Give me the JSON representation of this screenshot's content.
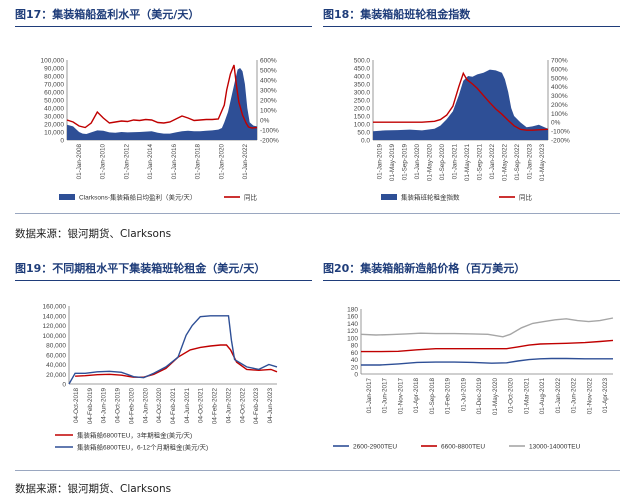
{
  "titles": {
    "fig17": "图17：集装箱船盈利水平（美元/天）",
    "fig18": "图18：集装箱船班轮租金指数",
    "fig19": "图19：不同期租水平下集装箱班轮租金（美元/天）",
    "fig20": "图20：集装箱船新造船价格（百万美元）"
  },
  "sources": {
    "top": "数据来源：银河期货、Clarksons",
    "bottom": "数据来源：银河期货、Clarksons"
  },
  "chart_data": [
    {
      "id": "fig17",
      "type": "area",
      "x_tick_labels": [
        "01-Jan-2008",
        "01-Jan-2010",
        "01-Jan-2012",
        "01-Jan-2014",
        "01-Jan-2016",
        "01-Jan-2018",
        "01-Jan-2020",
        "01-Jan-2022"
      ],
      "x_range": [
        2008.0,
        2023.7
      ],
      "y_left": {
        "ticks": [
          "0",
          "10,000",
          "20,000",
          "30,000",
          "40,000",
          "50,000",
          "60,000",
          "70,000",
          "80,000",
          "90,000",
          "100,000"
        ],
        "range": [
          0,
          100000
        ]
      },
      "y_right": {
        "ticks": [
          "600%",
          "500%",
          "400%",
          "300%",
          "200%",
          "100%",
          "0%",
          "-100%",
          "-200%"
        ],
        "range": [
          -200,
          600
        ]
      },
      "legend": [
        "Clarksons-集装箱船日均盈利（美元/天）",
        "同比"
      ],
      "colors": {
        "area": "#2e4f96",
        "line": "#c00000"
      },
      "series": [
        {
          "name": "Clarksons-集装箱船日均盈利（美元/天）",
          "axis": "left",
          "x": [
            2008.0,
            2008.5,
            2009.0,
            2009.3,
            2009.6,
            2010.0,
            2010.5,
            2011.0,
            2011.5,
            2012.0,
            2012.5,
            2013.0,
            2014.0,
            2015.0,
            2015.5,
            2016.0,
            2016.5,
            2017.0,
            2017.5,
            2018.0,
            2018.5,
            2019.0,
            2019.5,
            2020.0,
            2020.5,
            2020.8,
            2021.0,
            2021.3,
            2021.6,
            2021.9,
            2022.1,
            2022.3,
            2022.5,
            2022.7,
            2022.9,
            2023.1,
            2023.4,
            2023.7
          ],
          "values": [
            19000,
            17000,
            10000,
            8000,
            7500,
            9500,
            12000,
            11500,
            9500,
            9000,
            10000,
            9500,
            10000,
            11000,
            9000,
            8000,
            8000,
            9500,
            11000,
            11500,
            11000,
            11000,
            11500,
            12000,
            13000,
            15000,
            22000,
            35000,
            55000,
            75000,
            88000,
            90000,
            86000,
            70000,
            40000,
            22000,
            18000,
            17000
          ]
        },
        {
          "name": "同比",
          "axis": "right",
          "x": [
            2008.0,
            2008.5,
            2009.0,
            2009.5,
            2010.0,
            2010.5,
            2011.0,
            2011.5,
            2012.0,
            2012.5,
            2013.0,
            2013.5,
            2014.0,
            2014.5,
            2015.0,
            2015.5,
            2016.0,
            2016.5,
            2017.0,
            2017.5,
            2018.0,
            2018.5,
            2019.0,
            2019.5,
            2020.0,
            2020.5,
            2021.0,
            2021.2,
            2021.5,
            2021.8,
            2022.0,
            2022.2,
            2022.5,
            2022.8,
            2023.0,
            2023.3,
            2023.7
          ],
          "values": [
            0,
            -20,
            -60,
            -75,
            -30,
            80,
            20,
            -30,
            -20,
            -10,
            -15,
            0,
            -5,
            5,
            0,
            -25,
            -30,
            -20,
            10,
            40,
            20,
            -5,
            0,
            5,
            5,
            10,
            150,
            300,
            460,
            550,
            350,
            180,
            50,
            -30,
            -70,
            -80,
            -75
          ]
        }
      ]
    },
    {
      "id": "fig18",
      "type": "area",
      "x_tick_labels": [
        "01-Jan-2019",
        "01-May-2019",
        "01-Sep-2019",
        "01-Jan-2020",
        "01-May-2020",
        "01-Sep-2020",
        "01-Jan-2021",
        "01-May-2021",
        "01-Sep-2021",
        "01-Jan-2022",
        "01-May-2022",
        "01-Sep-2022",
        "01-Jan-2023",
        "01-May-2023"
      ],
      "x_range": [
        2019.0,
        2023.75
      ],
      "y_left": {
        "ticks": [
          "0.0",
          "50.0",
          "100.0",
          "150.0",
          "200.0",
          "250.0",
          "300.0",
          "350.0",
          "400.0",
          "450.0",
          "500.0"
        ],
        "range": [
          0,
          500
        ]
      },
      "y_right": {
        "ticks": [
          "700%",
          "600%",
          "500%",
          "400%",
          "300%",
          "200%",
          "100%",
          "0%",
          "-100%",
          "-200%"
        ],
        "range": [
          -200,
          700
        ]
      },
      "legend": [
        "集装箱班轮租金指数",
        "同比"
      ],
      "colors": {
        "area": "#2e4f96",
        "line": "#c00000"
      },
      "series": [
        {
          "name": "集装箱班轮租金指数",
          "axis": "left",
          "x": [
            2019.0,
            2019.33,
            2019.67,
            2020.0,
            2020.33,
            2020.67,
            2020.83,
            2021.0,
            2021.17,
            2021.33,
            2021.45,
            2021.58,
            2021.7,
            2021.83,
            2022.0,
            2022.17,
            2022.33,
            2022.5,
            2022.58,
            2022.67,
            2022.75,
            2022.83,
            2023.0,
            2023.17,
            2023.33,
            2023.5,
            2023.75
          ],
          "values": [
            55,
            60,
            62,
            65,
            60,
            70,
            90,
            130,
            180,
            280,
            370,
            400,
            395,
            410,
            420,
            440,
            435,
            420,
            380,
            300,
            200,
            150,
            110,
            80,
            85,
            95,
            70
          ]
        },
        {
          "name": "同比",
          "axis": "right",
          "x": [
            2019.0,
            2019.33,
            2019.67,
            2020.0,
            2020.33,
            2020.67,
            2020.83,
            2021.0,
            2021.17,
            2021.33,
            2021.45,
            2021.55,
            2021.7,
            2021.83,
            2022.0,
            2022.17,
            2022.33,
            2022.5,
            2022.67,
            2022.83,
            2023.0,
            2023.17,
            2023.33,
            2023.5,
            2023.75
          ],
          "values": [
            0,
            0,
            0,
            0,
            0,
            10,
            30,
            80,
            180,
            400,
            550,
            480,
            430,
            380,
            300,
            220,
            150,
            90,
            20,
            -40,
            -80,
            -90,
            -90,
            -85,
            -80
          ]
        }
      ]
    },
    {
      "id": "fig19",
      "type": "line",
      "x_tick_labels": [
        "04-Oct-2018",
        "04-Feb-2019",
        "04-Jun-2019",
        "04-Oct-2019",
        "04-Feb-2020",
        "04-Jun-2020",
        "04-Oct-2020",
        "04-Feb-2021",
        "04-Jun-2021",
        "04-Oct-2021",
        "04-Feb-2022",
        "04-Jun-2022",
        "04-Oct-2022",
        "04-Feb-2023",
        "04-Jun-2023"
      ],
      "x_range": [
        2018.6,
        2023.75
      ],
      "y_left": {
        "ticks": [
          "0",
          "20,000",
          "40,000",
          "60,000",
          "80,000",
          "100,000",
          "120,000",
          "140,000",
          "160,000"
        ],
        "range": [
          0,
          160000
        ]
      },
      "legend": [
        "集装箱船6800TEU，3年期租金(美元/天)",
        "集装箱船6800TEU，6-12个月期租金(美元/天)"
      ],
      "colors": {
        "s1": "#c00000",
        "s2": "#2e4f96"
      },
      "series": [
        {
          "name": "集装箱船6800TEU，3年期租金(美元/天)",
          "x": [
            2018.75,
            2019.0,
            2019.3,
            2019.6,
            2019.9,
            2020.2,
            2020.45,
            2020.7,
            2021.0,
            2021.3,
            2021.6,
            2021.85,
            2022.1,
            2022.35,
            2022.5,
            2022.6,
            2022.75,
            2023.0,
            2023.3,
            2023.6,
            2023.75
          ],
          "values": [
            16000,
            17000,
            19000,
            20000,
            18000,
            14000,
            14000,
            20000,
            32000,
            55000,
            70000,
            75000,
            78000,
            80000,
            80000,
            70000,
            45000,
            30000,
            28000,
            30000,
            25000
          ]
        },
        {
          "name": "集装箱船6800TEU，6-12个月期租金(美元/天)",
          "x": [
            2018.6,
            2018.75,
            2019.0,
            2019.3,
            2019.6,
            2019.9,
            2020.2,
            2020.45,
            2020.7,
            2021.0,
            2021.3,
            2021.5,
            2021.65,
            2021.85,
            2022.1,
            2022.35,
            2022.55,
            2022.62,
            2022.7,
            2023.0,
            2023.3,
            2023.55,
            2023.75
          ],
          "values": [
            0,
            22000,
            22000,
            25000,
            26000,
            24000,
            15000,
            13000,
            22000,
            35000,
            55000,
            100000,
            120000,
            138000,
            140000,
            140000,
            140000,
            90000,
            50000,
            35000,
            30000,
            40000,
            35000
          ]
        }
      ]
    },
    {
      "id": "fig20",
      "type": "line",
      "x_tick_labels": [
        "01-Jan-2017",
        "01-Jun-2017",
        "01-Nov-2017",
        "01-Apr-2018",
        "01-Sep-2018",
        "01-Feb-2019",
        "01-Jul-2019",
        "01-Dec-2019",
        "01-May-2020",
        "01-Oct-2020",
        "01-Mar-2021",
        "01-Aug-2021",
        "01-Jan-2022",
        "01-Jun-2022",
        "01-Nov-2022",
        "01-Apr-2023"
      ],
      "x_range": [
        2017.0,
        2023.75
      ],
      "y_left": {
        "ticks": [
          "0",
          "20",
          "40",
          "60",
          "80",
          "100",
          "120",
          "140",
          "160",
          "180"
        ],
        "range": [
          0,
          180
        ]
      },
      "legend": [
        "2600-2900TEU",
        "6600-8800TEU",
        "13000-14000TEU"
      ],
      "colors": {
        "s1": "#2e4f96",
        "s2": "#c00000",
        "s3": "#a6a6a6"
      },
      "series": [
        {
          "name": "2600-2900TEU",
          "x": [
            2017.0,
            2017.5,
            2018.0,
            2018.5,
            2019.0,
            2019.5,
            2020.0,
            2020.5,
            2020.9,
            2021.2,
            2021.5,
            2021.8,
            2022.1,
            2022.5,
            2023.0,
            2023.75
          ],
          "values": [
            25,
            25,
            28,
            32,
            33,
            33,
            32,
            30,
            31,
            36,
            40,
            42,
            43,
            43,
            42,
            42
          ]
        },
        {
          "name": "6600-8800TEU",
          "x": [
            2017.0,
            2017.5,
            2018.0,
            2018.5,
            2019.0,
            2019.5,
            2020.0,
            2020.5,
            2020.9,
            2021.2,
            2021.5,
            2021.8,
            2022.1,
            2022.5,
            2023.0,
            2023.4,
            2023.75
          ],
          "values": [
            62,
            62,
            63,
            67,
            70,
            70,
            70,
            70,
            70,
            75,
            80,
            83,
            84,
            85,
            87,
            90,
            93
          ]
        },
        {
          "name": "13000-14000TEU",
          "x": [
            2017.0,
            2017.4,
            2017.8,
            2018.2,
            2018.6,
            2019.0,
            2019.5,
            2020.0,
            2020.4,
            2020.8,
            2021.0,
            2021.3,
            2021.6,
            2021.9,
            2022.2,
            2022.5,
            2022.8,
            2023.1,
            2023.4,
            2023.75
          ],
          "values": [
            110,
            108,
            109,
            111,
            113,
            112,
            112,
            111,
            110,
            103,
            110,
            128,
            140,
            145,
            150,
            153,
            148,
            145,
            148,
            155
          ]
        }
      ]
    }
  ]
}
